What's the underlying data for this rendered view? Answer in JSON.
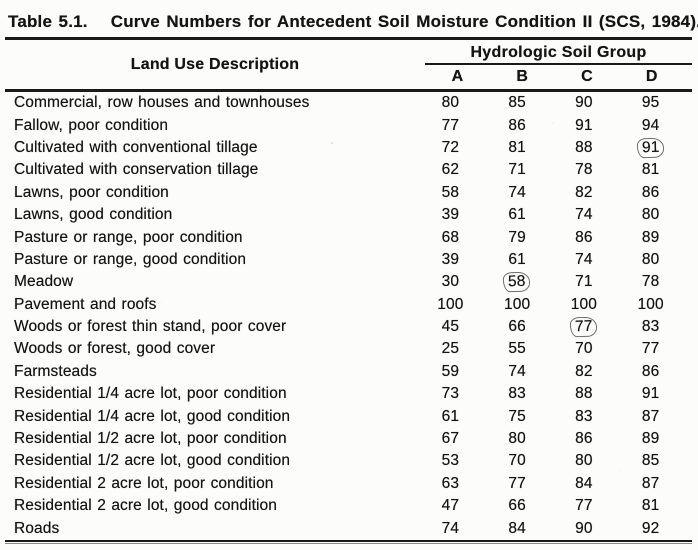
{
  "title": {
    "number": "Table 5.1.",
    "caption": "Curve Numbers for Antecedent Soil Moisture Condition II (SCS, 1984)."
  },
  "header": {
    "land_use": "Land Use Description",
    "group_title": "Hydrologic Soil Group",
    "columns": [
      "A",
      "B",
      "C",
      "D"
    ]
  },
  "table": {
    "rows": [
      {
        "label": "Commercial, row houses and townhouses",
        "values": [
          "80",
          "85",
          "90",
          "95"
        ],
        "circled": []
      },
      {
        "label": "Fallow, poor condition",
        "values": [
          "77",
          "86",
          "91",
          "94"
        ],
        "circled": []
      },
      {
        "label": "Cultivated with conventional tillage",
        "values": [
          "72",
          "81",
          "88",
          "91"
        ],
        "circled": [
          3
        ]
      },
      {
        "label": "Cultivated with conservation tillage",
        "values": [
          "62",
          "71",
          "78",
          "81"
        ],
        "circled": []
      },
      {
        "label": "Lawns, poor condition",
        "values": [
          "58",
          "74",
          "82",
          "86"
        ],
        "circled": []
      },
      {
        "label": "Lawns, good condition",
        "values": [
          "39",
          "61",
          "74",
          "80"
        ],
        "circled": []
      },
      {
        "label": "Pasture or range, poor condition",
        "values": [
          "68",
          "79",
          "86",
          "89"
        ],
        "circled": []
      },
      {
        "label": "Pasture or range, good condition",
        "values": [
          "39",
          "61",
          "74",
          "80"
        ],
        "circled": []
      },
      {
        "label": "Meadow",
        "values": [
          "30",
          "58",
          "71",
          "78"
        ],
        "circled": [
          1
        ]
      },
      {
        "label": "Pavement and roofs",
        "values": [
          "100",
          "100",
          "100",
          "100"
        ],
        "circled": []
      },
      {
        "label": "Woods or forest thin stand, poor cover",
        "values": [
          "45",
          "66",
          "77",
          "83"
        ],
        "circled": [
          2
        ]
      },
      {
        "label": "Woods or forest, good cover",
        "values": [
          "25",
          "55",
          "70",
          "77"
        ],
        "circled": []
      },
      {
        "label": "Farmsteads",
        "values": [
          "59",
          "74",
          "82",
          "86"
        ],
        "circled": []
      },
      {
        "label": "Residential 1/4 acre lot, poor condition",
        "values": [
          "73",
          "83",
          "88",
          "91"
        ],
        "circled": []
      },
      {
        "label": "Residential 1/4 acre lot, good condition",
        "values": [
          "61",
          "75",
          "83",
          "87"
        ],
        "circled": []
      },
      {
        "label": "Residential 1/2 acre lot, poor condition",
        "values": [
          "67",
          "80",
          "86",
          "89"
        ],
        "circled": []
      },
      {
        "label": "Residential 1/2 acre lot, good condition",
        "values": [
          "53",
          "70",
          "80",
          "85"
        ],
        "circled": []
      },
      {
        "label": "Residential 2 acre lot, poor condition",
        "values": [
          "63",
          "77",
          "84",
          "87"
        ],
        "circled": []
      },
      {
        "label": "Residential 2 acre lot, good condition",
        "values": [
          "47",
          "66",
          "77",
          "81"
        ],
        "circled": []
      },
      {
        "label": "Roads",
        "values": [
          "74",
          "84",
          "90",
          "92"
        ],
        "circled": []
      }
    ]
  },
  "colors": {
    "ink": "#1a1a1a",
    "paper": "#fcfcfa",
    "pencil_circle": "#6e6e6e"
  }
}
